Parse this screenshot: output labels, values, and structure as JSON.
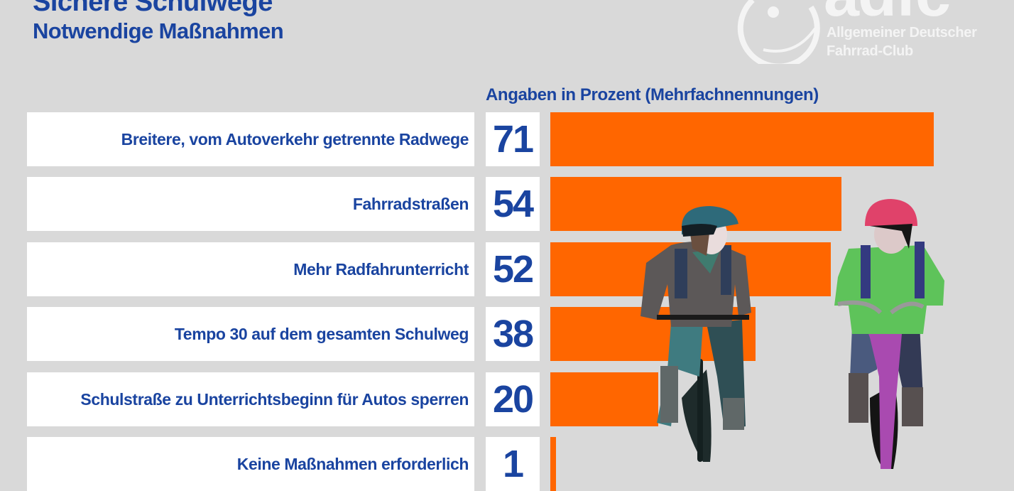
{
  "header": {
    "title": "Sichere Schulwege",
    "subtitle": "Notwendige Maßnahmen"
  },
  "logo": {
    "wordmark": "adfc",
    "line1": "Allgemeiner Deutscher",
    "line2": "Fahrrad-Club"
  },
  "chart_data": {
    "type": "bar",
    "orientation": "horizontal",
    "title": "Sichere Schulwege",
    "subtitle": "Notwendige Maßnahmen",
    "unit_label": "Angaben in Prozent (Mehrfachnennungen)",
    "categories": [
      "Breitere, vom Autoverkehr getrennte Radwege",
      "Fahrradstraßen",
      "Mehr Radfahrunterricht",
      "Tempo 30 auf dem gesamten Schulweg",
      "Schulstraße zu Unterrichtsbeginn für Autos sperren",
      "Keine Maßnahmen erforderlich"
    ],
    "values": [
      71,
      54,
      52,
      38,
      20,
      1
    ],
    "xlim": [
      0,
      100
    ],
    "grid": false,
    "bar_color": "#ff6600",
    "text_color": "#1a44a0",
    "background": "#d9d9d9"
  }
}
